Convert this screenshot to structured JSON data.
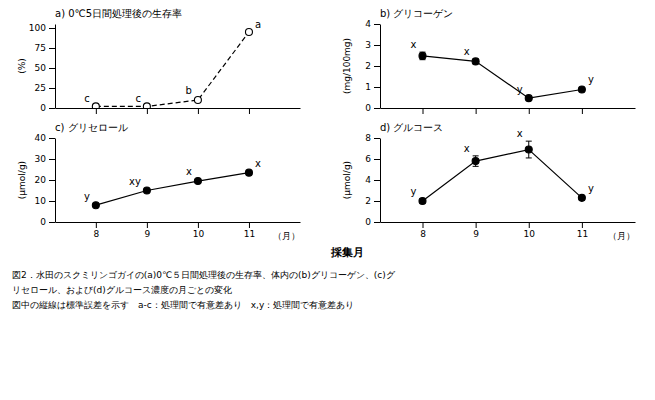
{
  "chart_data": [
    {
      "type": "line",
      "title": "a) 0℃5日間処理後の生存率",
      "ylabel": "(%)",
      "x": [
        8,
        9,
        10,
        11
      ],
      "values": [
        2.0,
        2.0,
        10.0,
        95.0
      ],
      "errors": [
        0.0,
        0.0,
        2.0,
        0.0
      ],
      "annotations": [
        "c",
        "c",
        "b",
        "a"
      ],
      "color": "black",
      "marker": "circle-open",
      "line_style": "dashed",
      "xlim": [
        7.2,
        12.0
      ],
      "xticks": [
        8,
        9,
        10,
        11
      ],
      "ylim": [
        0,
        105
      ],
      "yticks": [
        0,
        25,
        50,
        75,
        100
      ],
      "tick_labels": "y"
    },
    {
      "type": "line",
      "title": "b) グリコーゲン",
      "ylabel": "(mg/100mg)",
      "x": [
        8,
        9,
        10,
        11
      ],
      "values": [
        2.48,
        2.22,
        0.47,
        0.88
      ],
      "errors": [
        0.18,
        0.12,
        0.06,
        0.1
      ],
      "annotations": [
        "x",
        "x",
        "y",
        "y"
      ],
      "color": "black",
      "marker": "circle",
      "line_style": "solid",
      "xlim": [
        7.2,
        12.0
      ],
      "xticks": [
        8,
        9,
        10,
        11
      ],
      "ylim": [
        0,
        4
      ],
      "yticks": [
        0,
        1,
        2,
        3,
        4
      ],
      "tick_labels": "y"
    },
    {
      "type": "line",
      "title": "c) グリセロール",
      "ylabel": "(μmol/g)",
      "x": [
        8,
        9,
        10,
        11
      ],
      "values": [
        8.0,
        15.0,
        19.5,
        23.5
      ],
      "errors": [
        0.5,
        0.8,
        0.8,
        1.0
      ],
      "annotations": [
        "y",
        "xy",
        "x",
        "x"
      ],
      "color": "black",
      "marker": "circle",
      "line_style": "solid",
      "xlim": [
        7.2,
        12.0
      ],
      "xticks": [
        8,
        9,
        10,
        11
      ],
      "ylim": [
        0,
        40
      ],
      "yticks": [
        0,
        10,
        20,
        30,
        40
      ]
    },
    {
      "type": "line",
      "title": "d) グルコース",
      "ylabel": "(μmol/g)",
      "x": [
        8,
        9,
        10,
        11
      ],
      "values": [
        2.0,
        5.8,
        6.9,
        2.3
      ],
      "errors": [
        0.2,
        0.5,
        0.8,
        0.2
      ],
      "annotations": [
        "y",
        "x",
        "x",
        "y"
      ],
      "color": "black",
      "marker": "circle",
      "line_style": "solid",
      "xlim": [
        7.2,
        12.0
      ],
      "xticks": [
        8,
        9,
        10,
        11
      ],
      "ylim": [
        0,
        8
      ],
      "yticks": [
        0,
        2,
        4,
        6,
        8
      ]
    }
  ],
  "xlabel": "採集月",
  "xlabel_unit": "（月）",
  "caption": [
    "図2．水田のスクミリンゴガイの(a)0℃５日間処理後の生存率、体内の(b)グリコーゲン、(c)グ",
    "リセロール、および(d)グルコース濃度の月ごとの変化",
    "図中の縦線は標準誤差を示す　a-c：処理間で有意差あり　x,y：処理間で有意差あり"
  ]
}
